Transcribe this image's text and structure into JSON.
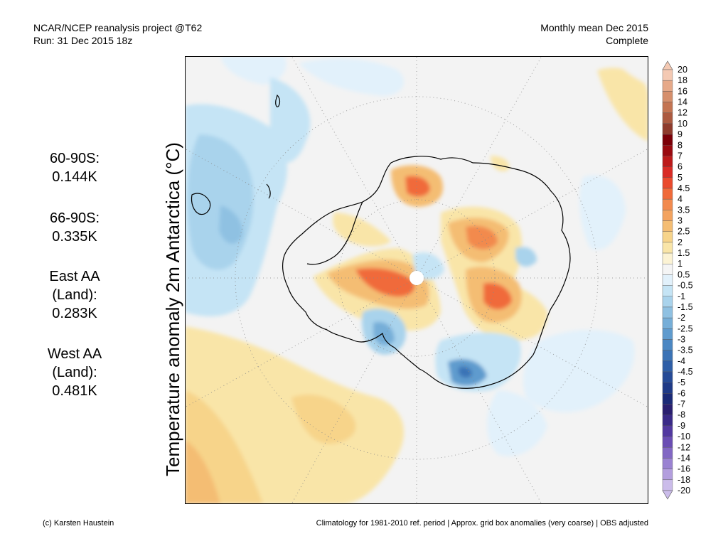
{
  "header": {
    "line1": "NCAR/NCEP reanalysis project @T62",
    "line2": "Run: 31 Dec 2015 18z",
    "right1": "Monthly mean Dec 2015",
    "right2": "Complete"
  },
  "stats": [
    {
      "label_lines": [
        "60-90S:",
        "0.144K"
      ]
    },
    {
      "label_lines": [
        "66-90S:",
        "0.335K"
      ]
    },
    {
      "label_lines": [
        "East AA",
        "(Land):",
        "0.283K"
      ]
    },
    {
      "label_lines": [
        "West AA",
        "(Land):",
        "0.481K"
      ]
    }
  ],
  "axis_title": "Temperature anomaly 2m Antarctica (°C)",
  "colorbar": {
    "labels": [
      "20",
      "18",
      "16",
      "14",
      "12",
      "10",
      "9",
      "8",
      "7",
      "6",
      "5",
      "4.5",
      "4",
      "3.5",
      "3",
      "2.5",
      "2",
      "1.5",
      "1",
      "0.5",
      "-0.5",
      "-1",
      "-1.5",
      "-2",
      "-2.5",
      "-3",
      "-3.5",
      "-4",
      "-4.5",
      "-5",
      "-6",
      "-7",
      "-8",
      "-9",
      "-10",
      "-12",
      "-14",
      "-16",
      "-18",
      "-20"
    ],
    "colors": [
      "#f4c9b3",
      "#e6a989",
      "#d68f6c",
      "#c47452",
      "#ac5a40",
      "#8f3b2c",
      "#7c0008",
      "#9a0a10",
      "#bd1a1a",
      "#d92b25",
      "#ea4a2d",
      "#f06a3a",
      "#f28a4e",
      "#f3a35f",
      "#f4bd73",
      "#f7d48a",
      "#f9e5a8",
      "#fcf3d4",
      "#f5f5f5",
      "#e2f1fb",
      "#c5e4f5",
      "#a9d3ec",
      "#8fc1e2",
      "#76aed8",
      "#5f9bce",
      "#4b87c3",
      "#3b73b6",
      "#2f5fa7",
      "#264b97",
      "#1f3a87",
      "#1b2a77",
      "#2a1f70",
      "#3a2a88",
      "#5238a0",
      "#6a4db4",
      "#8267c4",
      "#9a82d2",
      "#b39ede",
      "#cbbcea"
    ]
  },
  "footer": {
    "left": "(c) Karsten Haustein",
    "right": "Climatology for 1981-2010 ref. period | Approx. grid box anomalies (very coarse) | OBS adjusted"
  }
}
